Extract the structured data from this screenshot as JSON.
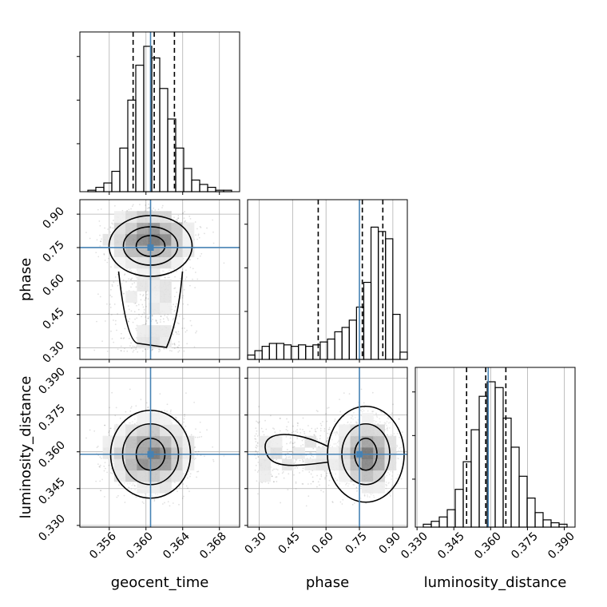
{
  "chart_data": {
    "type": "corner",
    "parameters": [
      "geocent_time",
      "phase",
      "luminosity_distance"
    ],
    "truth": {
      "geocent_time": 0.3605,
      "phase": 0.75,
      "luminosity_distance": 0.359
    },
    "ranges": {
      "geocent_time": [
        0.3528,
        0.3702
      ],
      "phase": [
        0.248,
        0.965
      ],
      "luminosity_distance": [
        0.3293,
        0.3944
      ]
    },
    "ticks": {
      "geocent_time": [
        "0.356",
        "0.360",
        "0.364",
        "0.368"
      ],
      "phase": [
        "0.30",
        "0.45",
        "0.60",
        "0.75",
        "0.90"
      ],
      "luminosity_distance": [
        "0.330",
        "0.345",
        "0.360",
        "0.375",
        "0.390"
      ]
    },
    "quantiles": {
      "geocent_time": [
        0.3586,
        0.3609,
        0.3631
      ],
      "phase": [
        0.565,
        0.763,
        0.855
      ],
      "luminosity_distance": [
        0.3502,
        0.358,
        0.3662
      ]
    },
    "histograms": {
      "geocent_time": {
        "min": 0.3528,
        "max": 0.3702,
        "counts": [
          0.0,
          0.01,
          0.03,
          0.06,
          0.14,
          0.3,
          0.63,
          0.87,
          1.0,
          0.92,
          0.71,
          0.5,
          0.3,
          0.16,
          0.08,
          0.05,
          0.03,
          0.01,
          0.01,
          0.0
        ]
      },
      "phase": {
        "min": 0.248,
        "max": 0.965,
        "counts": [
          0.03,
          0.06,
          0.09,
          0.11,
          0.11,
          0.1,
          0.09,
          0.1,
          0.09,
          0.1,
          0.12,
          0.14,
          0.19,
          0.22,
          0.27,
          0.36,
          0.53,
          0.91,
          0.88,
          0.83,
          0.31,
          0.05
        ]
      },
      "luminosity_distance": {
        "min": 0.3293,
        "max": 0.3944,
        "counts": [
          0.0,
          0.02,
          0.04,
          0.07,
          0.12,
          0.26,
          0.45,
          0.67,
          0.9,
          1.0,
          0.96,
          0.75,
          0.55,
          0.35,
          0.2,
          0.1,
          0.05,
          0.03,
          0.02,
          0.0
        ]
      }
    },
    "quantile_line_color": "#000000",
    "truth_color": "#4682b4",
    "contour_color": "#000000",
    "grid": true
  }
}
